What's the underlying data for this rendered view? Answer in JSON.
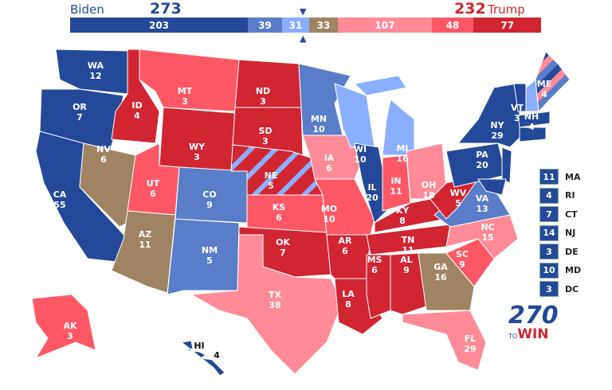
{
  "header": {
    "biden_label": "Biden",
    "biden_total": "273",
    "trump_total": "232",
    "trump_label": "Trump"
  },
  "colors": {
    "safe-d": "#244999",
    "likely-d": "#5a7dc9",
    "lean-d": "#8aafff",
    "tossup": "#9e8462",
    "lean-r": "#ff8b98",
    "likely-r": "#ff5865",
    "safe-r": "#d22532",
    "blue_text": "#244999",
    "red_text": "#d22532"
  },
  "bar": [
    {
      "rating": "safe-d",
      "value": "203"
    },
    {
      "rating": "likely-d",
      "value": "39"
    },
    {
      "rating": "lean-d",
      "value": "31"
    },
    {
      "rating": "tossup",
      "value": "33"
    },
    {
      "rating": "lean-r",
      "value": "107"
    },
    {
      "rating": "likely-r",
      "value": "48"
    },
    {
      "rating": "safe-r",
      "value": "77"
    }
  ],
  "states": {
    "WA": {
      "abbr": "WA",
      "ev": "12",
      "rating": "safe-d"
    },
    "OR": {
      "abbr": "OR",
      "ev": "7",
      "rating": "safe-d"
    },
    "CA": {
      "abbr": "CA",
      "ev": "55",
      "rating": "safe-d"
    },
    "NV": {
      "abbr": "NV",
      "ev": "6",
      "rating": "tossup"
    },
    "ID": {
      "abbr": "ID",
      "ev": "4",
      "rating": "safe-r"
    },
    "MT": {
      "abbr": "MT",
      "ev": "3",
      "rating": "likely-r"
    },
    "WY": {
      "abbr": "WY",
      "ev": "3",
      "rating": "safe-r"
    },
    "UT": {
      "abbr": "UT",
      "ev": "6",
      "rating": "likely-r"
    },
    "AZ": {
      "abbr": "AZ",
      "ev": "11",
      "rating": "tossup"
    },
    "CO": {
      "abbr": "CO",
      "ev": "9",
      "rating": "likely-d"
    },
    "NM": {
      "abbr": "NM",
      "ev": "5",
      "rating": "likely-d"
    },
    "ND": {
      "abbr": "ND",
      "ev": "3",
      "rating": "safe-r"
    },
    "SD": {
      "abbr": "SD",
      "ev": "3",
      "rating": "safe-r"
    },
    "NE": {
      "abbr": "NE",
      "ev": "5",
      "rating": "safe-r"
    },
    "KS": {
      "abbr": "KS",
      "ev": "6",
      "rating": "likely-r"
    },
    "OK": {
      "abbr": "OK",
      "ev": "7",
      "rating": "safe-r"
    },
    "TX": {
      "abbr": "TX",
      "ev": "38",
      "rating": "lean-r"
    },
    "MN": {
      "abbr": "MN",
      "ev": "10",
      "rating": "likely-d"
    },
    "IA": {
      "abbr": "IA",
      "ev": "6",
      "rating": "lean-r"
    },
    "MO": {
      "abbr": "MO",
      "ev": "10",
      "rating": "likely-r"
    },
    "AR": {
      "abbr": "AR",
      "ev": "6",
      "rating": "safe-r"
    },
    "LA": {
      "abbr": "LA",
      "ev": "8",
      "rating": "safe-r"
    },
    "WI": {
      "abbr": "WI",
      "ev": "10",
      "rating": "lean-d"
    },
    "IL": {
      "abbr": "IL",
      "ev": "20",
      "rating": "safe-d"
    },
    "MI": {
      "abbr": "MI",
      "ev": "16",
      "rating": "lean-d"
    },
    "IN": {
      "abbr": "IN",
      "ev": "11",
      "rating": "likely-r"
    },
    "OH": {
      "abbr": "OH",
      "ev": "18",
      "rating": "lean-r"
    },
    "KY": {
      "abbr": "KY",
      "ev": "8",
      "rating": "safe-r"
    },
    "TN": {
      "abbr": "TN",
      "ev": "11",
      "rating": "safe-r"
    },
    "MS": {
      "abbr": "MS",
      "ev": "6",
      "rating": "safe-r"
    },
    "AL": {
      "abbr": "AL",
      "ev": "9",
      "rating": "safe-r"
    },
    "GA": {
      "abbr": "GA",
      "ev": "16",
      "rating": "tossup"
    },
    "FL": {
      "abbr": "FL",
      "ev": "29",
      "rating": "lean-r"
    },
    "SC": {
      "abbr": "SC",
      "ev": "9",
      "rating": "likely-r"
    },
    "NC": {
      "abbr": "NC",
      "ev": "15",
      "rating": "lean-r"
    },
    "VA": {
      "abbr": "VA",
      "ev": "13",
      "rating": "likely-d"
    },
    "WV": {
      "abbr": "WV",
      "ev": "5",
      "rating": "safe-r"
    },
    "PA": {
      "abbr": "PA",
      "ev": "20",
      "rating": "safe-d"
    },
    "NY": {
      "abbr": "NY",
      "ev": "29",
      "rating": "safe-d"
    },
    "VT": {
      "abbr": "VT",
      "ev": "3",
      "rating": "safe-d"
    },
    "NH": {
      "abbr": "NH",
      "ev": "4",
      "rating": "lean-d"
    },
    "ME": {
      "abbr": "ME",
      "ev": "4",
      "rating": "split"
    },
    "AK": {
      "abbr": "AK",
      "ev": "3",
      "rating": "likely-r"
    },
    "HI": {
      "abbr": "HI",
      "ev": "4",
      "rating": "safe-d"
    }
  },
  "small_states": [
    {
      "abbr": "MA",
      "ev": "11"
    },
    {
      "abbr": "RI",
      "ev": "4"
    },
    {
      "abbr": "CT",
      "ev": "7"
    },
    {
      "abbr": "NJ",
      "ev": "14"
    },
    {
      "abbr": "DE",
      "ev": "3"
    },
    {
      "abbr": "MD",
      "ev": "10"
    },
    {
      "abbr": "DC",
      "ev": "3"
    }
  ],
  "logo": {
    "number": "270",
    "to": "TO",
    "win": "WIN"
  }
}
